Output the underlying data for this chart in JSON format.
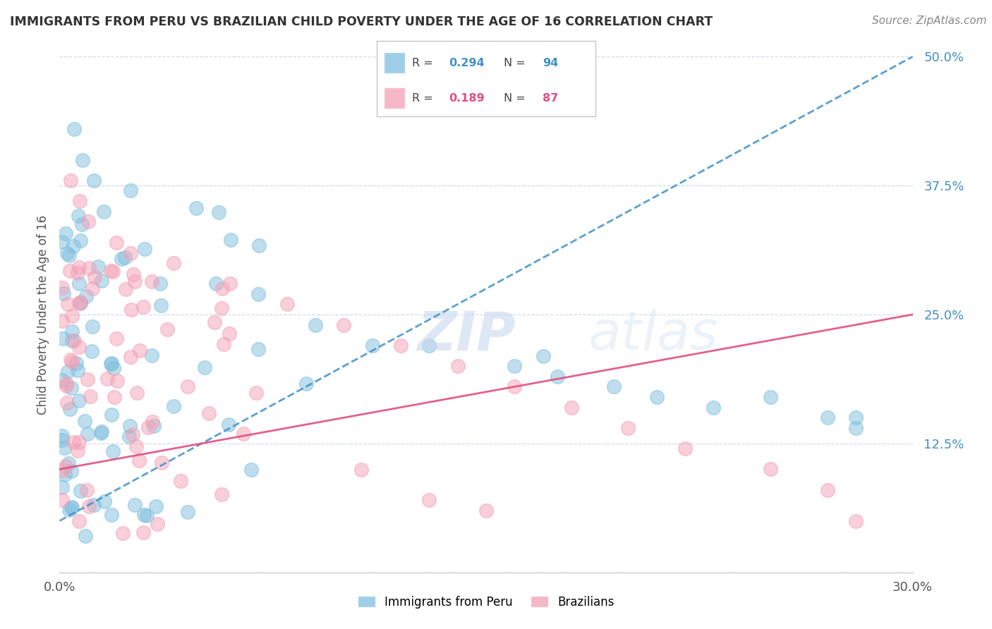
{
  "title": "IMMIGRANTS FROM PERU VS BRAZILIAN CHILD POVERTY UNDER THE AGE OF 16 CORRELATION CHART",
  "source": "Source: ZipAtlas.com",
  "xlabel_blue": "Immigrants from Peru",
  "xlabel_pink": "Brazilians",
  "ylabel": "Child Poverty Under the Age of 16",
  "xmin": 0.0,
  "xmax": 0.3,
  "ymin": 0.0,
  "ymax": 0.5,
  "xticks": [
    0.0,
    0.05,
    0.1,
    0.15,
    0.2,
    0.25,
    0.3
  ],
  "xtick_labels": [
    "0.0%",
    "",
    "",
    "",
    "",
    "",
    "30.0%"
  ],
  "yticks": [
    0.0,
    0.125,
    0.25,
    0.375,
    0.5
  ],
  "ytick_labels": [
    "",
    "12.5%",
    "25.0%",
    "37.5%",
    "50.0%"
  ],
  "blue_R": 0.294,
  "blue_N": 94,
  "pink_R": 0.189,
  "pink_N": 87,
  "blue_color": "#7fbfdf",
  "pink_color": "#f4a0b5",
  "blue_line_color": "#4090c8",
  "pink_line_color": "#e05080",
  "title_color": "#333333",
  "source_color": "#888888",
  "grid_color": "#d0d8e8",
  "blue_line_x0": 0.0,
  "blue_line_y0": 0.05,
  "blue_line_x1": 0.3,
  "blue_line_y1": 0.5,
  "pink_line_x0": 0.0,
  "pink_line_y0": 0.1,
  "pink_line_x1": 0.3,
  "pink_line_y1": 0.25
}
